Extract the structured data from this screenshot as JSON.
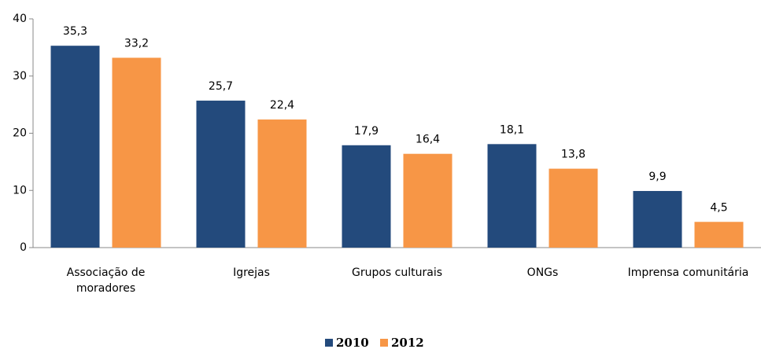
{
  "chart_data": {
    "type": "bar",
    "categories": [
      "Associação de moradores",
      "Igrejas",
      "Grupos culturais",
      "ONGs",
      "Imprensa comunitária"
    ],
    "series": [
      {
        "name": "2010",
        "color": "#234a7c",
        "values": [
          35.3,
          25.7,
          17.9,
          18.1,
          9.9
        ],
        "value_labels": [
          "35,3",
          "25,7",
          "17,9",
          "18,1",
          "9,9"
        ]
      },
      {
        "name": "2012",
        "color": "#f79646",
        "values": [
          33.2,
          22.4,
          16.4,
          13.8,
          4.5
        ],
        "value_labels": [
          "33,2",
          "22,4",
          "16,4",
          "13,8",
          "4,5"
        ]
      }
    ],
    "ylim": [
      0,
      40
    ],
    "yticks": [
      0,
      10,
      20,
      30,
      40
    ],
    "grid": false,
    "legend": "bottom"
  }
}
